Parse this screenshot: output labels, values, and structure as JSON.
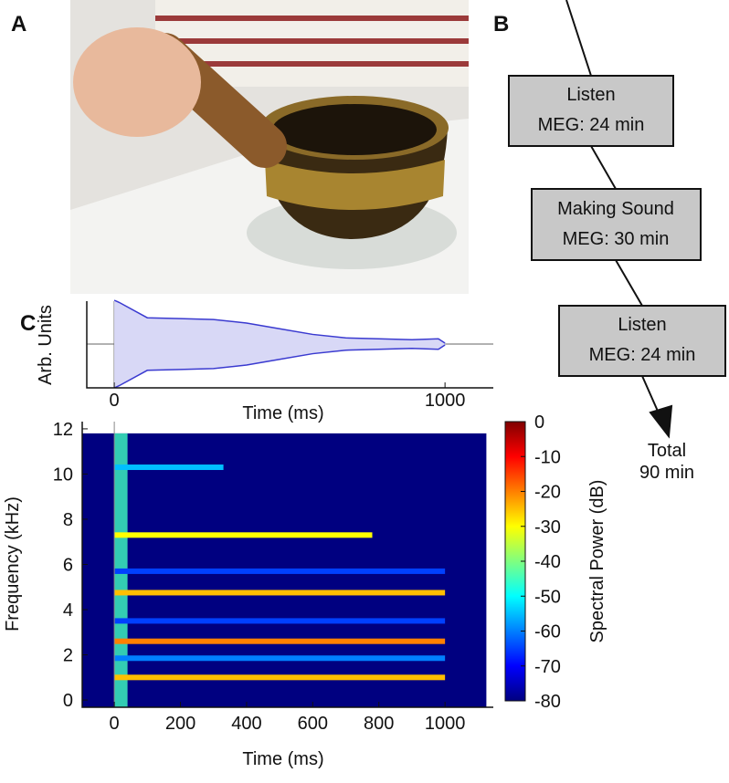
{
  "panels": [
    "A",
    "B",
    "C"
  ],
  "flowchart": {
    "steps": [
      {
        "label": "Listen",
        "detail": "MEG: 24 min"
      },
      {
        "label": "Making Sound",
        "detail": "MEG: 30 min"
      },
      {
        "label": "Listen",
        "detail": "MEG: 24 min"
      }
    ],
    "total": [
      "Total",
      "90 min"
    ]
  },
  "chart_data": [
    {
      "type": "envelope",
      "x_label": "Time (ms)",
      "y_label": "Arb. Units",
      "x": [
        0,
        15,
        100,
        200,
        300,
        400,
        500,
        600,
        700,
        800,
        900,
        980,
        1000
      ],
      "values": [
        1.0,
        0.95,
        0.6,
        0.58,
        0.56,
        0.48,
        0.35,
        0.22,
        0.14,
        0.12,
        0.1,
        0.12,
        0.02
      ],
      "xlim": [
        -83,
        1146
      ],
      "xticks": [
        0,
        1000
      ],
      "color": "#3a3ad0"
    },
    {
      "type": "spectrogram",
      "x_label": "Time (ms)",
      "y_label": "Frequency (kHz)",
      "colorbar_label": "Spectral Power (dB)",
      "xlim": [
        -97,
        1146
      ],
      "ylim": [
        -0.32,
        12.32
      ],
      "xticks": [
        0,
        200,
        400,
        600,
        800,
        1000
      ],
      "yticks": [
        0,
        2,
        4,
        6,
        8,
        10,
        12
      ],
      "clim": [
        -80,
        0
      ],
      "cticks": [
        0,
        -10,
        -20,
        -30,
        -40,
        -50,
        -60,
        -70,
        -80
      ],
      "extent": {
        "x": [
          -97,
          1125
        ],
        "y": [
          -0.3,
          11.8
        ]
      },
      "onset": {
        "end": 40,
        "power": -45
      },
      "bands": {
        "frequency": [
          1.0,
          1.85,
          2.6,
          3.5,
          4.75,
          5.7,
          7.3,
          10.3
        ],
        "end": [
          1000,
          1000,
          1000,
          1000,
          1000,
          1000,
          780,
          330
        ],
        "power": [
          -25,
          -60,
          -20,
          -65,
          -25,
          -65,
          -30,
          -55
        ]
      }
    }
  ]
}
